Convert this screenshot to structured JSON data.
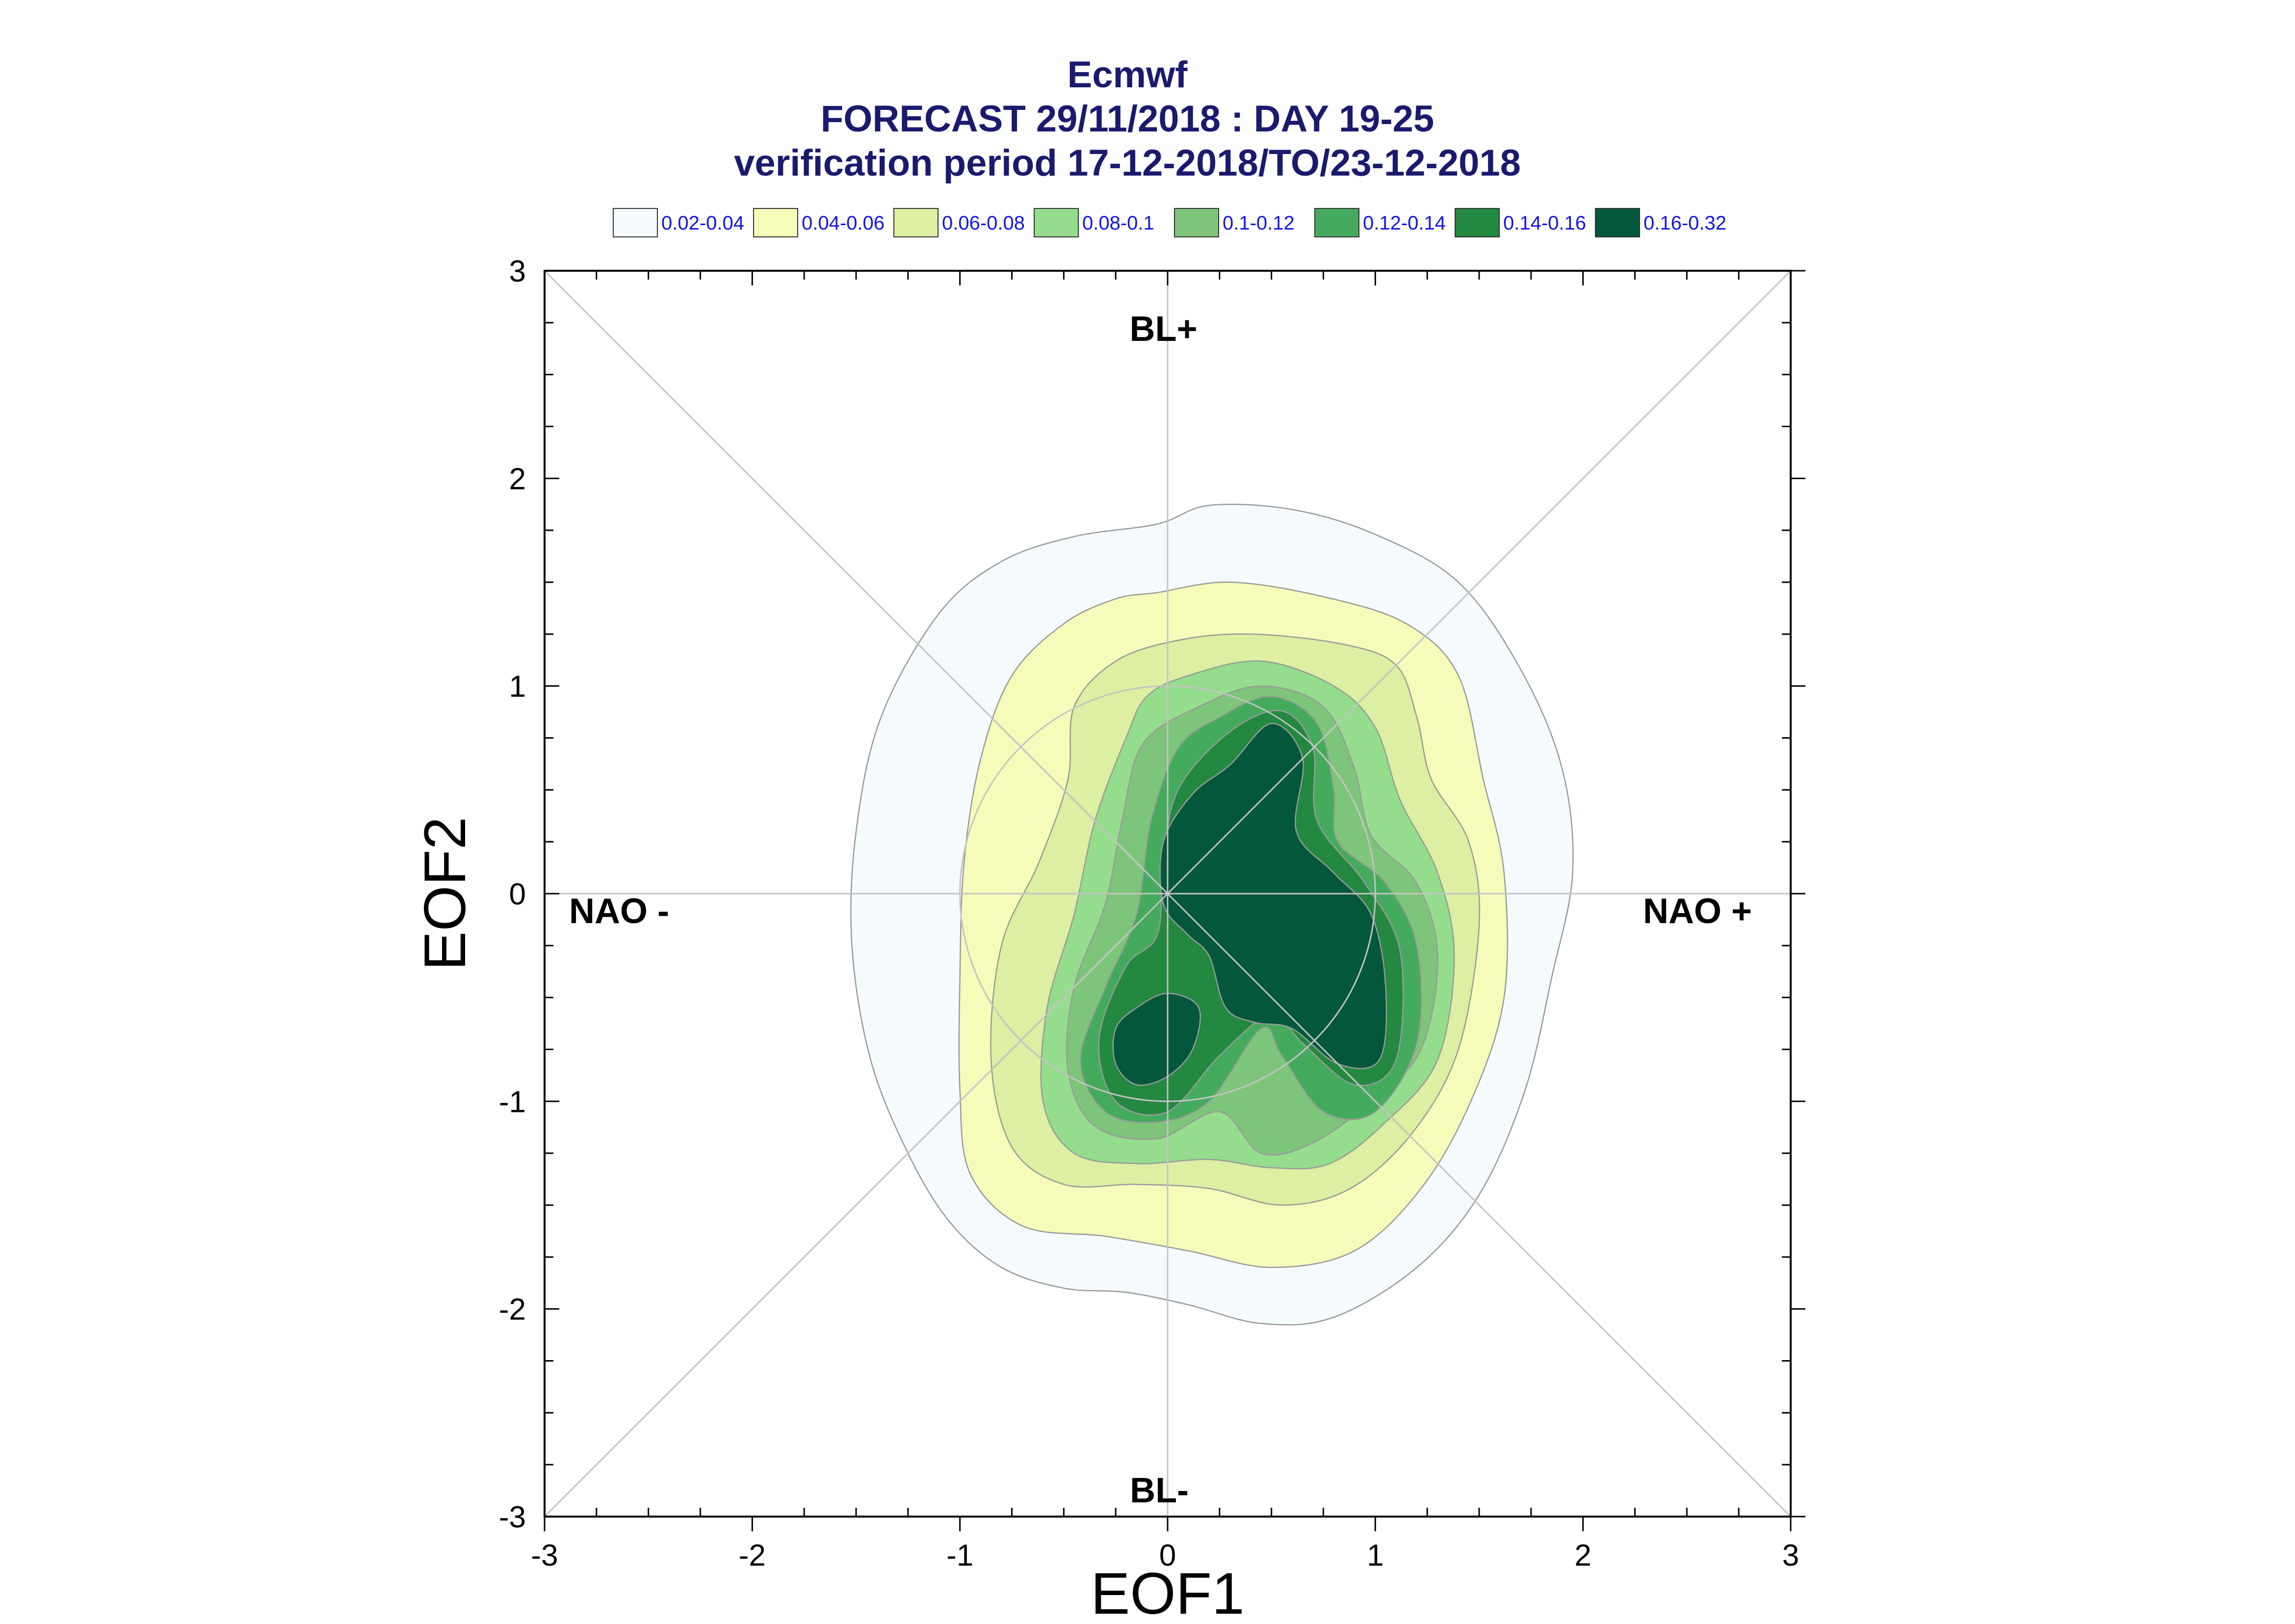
{
  "title": {
    "line1": "Ecmwf",
    "line2": "FORECAST 29/11/2018 : DAY 19-25",
    "line3": "verification period 17-12-2018/TO/23-12-2018"
  },
  "legend": [
    {
      "label": "0.02-0.04",
      "color": "#f5fafc"
    },
    {
      "label": "0.04-0.06",
      "color": "#f6fbb9"
    },
    {
      "label": "0.06-0.08",
      "color": "#dcefa2"
    },
    {
      "label": "0.08-0.1",
      "color": "#94dd8c"
    },
    {
      "label": "0.1-0.12",
      "color": "#7dc57a"
    },
    {
      "label": "0.12-0.14",
      "color": "#44ab5e"
    },
    {
      "label": "0.14-0.16",
      "color": "#238840"
    },
    {
      "label": "0.16-0.32",
      "color": "#03573a"
    }
  ],
  "regimes": {
    "top": "BL+",
    "bottom": "BL-",
    "left": "NAO -",
    "right": "NAO +"
  },
  "chart_data": {
    "type": "contour",
    "xlabel": "EOF1",
    "ylabel": "EOF2",
    "xlim": [
      -3,
      3
    ],
    "ylim": [
      -3,
      3
    ],
    "xticks": [
      "-3",
      "-2",
      "-1",
      "0",
      "1",
      "2",
      "3"
    ],
    "yticks": [
      "3",
      "2",
      "1",
      "0",
      "-1",
      "-2",
      "-3"
    ],
    "reference_circle_radius": 1,
    "levels": [
      {
        "range": "0.02-0.04",
        "color": "#f5fafc",
        "polygon": [
          [
            -0.05,
            1.78
          ],
          [
            0.2,
            1.87
          ],
          [
            0.6,
            1.85
          ],
          [
            1.0,
            1.73
          ],
          [
            1.4,
            1.5
          ],
          [
            1.7,
            1.08
          ],
          [
            1.9,
            0.6
          ],
          [
            1.95,
            0.1
          ],
          [
            1.85,
            -0.4
          ],
          [
            1.72,
            -0.95
          ],
          [
            1.5,
            -1.45
          ],
          [
            1.2,
            -1.8
          ],
          [
            0.8,
            -2.04
          ],
          [
            0.45,
            -2.07
          ],
          [
            0.1,
            -1.98
          ],
          [
            -0.2,
            -1.92
          ],
          [
            -0.5,
            -1.9
          ],
          [
            -0.8,
            -1.8
          ],
          [
            -1.05,
            -1.58
          ],
          [
            -1.25,
            -1.25
          ],
          [
            -1.43,
            -0.8
          ],
          [
            -1.52,
            -0.25
          ],
          [
            -1.5,
            0.3
          ],
          [
            -1.38,
            0.85
          ],
          [
            -1.1,
            1.35
          ],
          [
            -0.8,
            1.6
          ],
          [
            -0.45,
            1.72
          ]
        ]
      },
      {
        "range": "0.04-0.06",
        "color": "#f6fbb9",
        "polygon": [
          [
            -0.05,
            1.45
          ],
          [
            0.3,
            1.5
          ],
          [
            0.75,
            1.43
          ],
          [
            1.15,
            1.3
          ],
          [
            1.4,
            1.05
          ],
          [
            1.52,
            0.55
          ],
          [
            1.62,
            0.1
          ],
          [
            1.62,
            -0.5
          ],
          [
            1.46,
            -1.0
          ],
          [
            1.22,
            -1.42
          ],
          [
            0.9,
            -1.72
          ],
          [
            0.5,
            -1.8
          ],
          [
            0.1,
            -1.72
          ],
          [
            -0.3,
            -1.65
          ],
          [
            -0.7,
            -1.6
          ],
          [
            -0.95,
            -1.35
          ],
          [
            -1.0,
            -0.95
          ],
          [
            -1.0,
            -0.4
          ],
          [
            -0.98,
            0.15
          ],
          [
            -0.9,
            0.65
          ],
          [
            -0.75,
            1.05
          ],
          [
            -0.5,
            1.3
          ],
          [
            -0.25,
            1.42
          ]
        ]
      },
      {
        "range": "0.06-0.08",
        "color": "#dcefa2",
        "polygon": [
          [
            0.05,
            1.22
          ],
          [
            0.4,
            1.25
          ],
          [
            0.85,
            1.2
          ],
          [
            1.1,
            1.1
          ],
          [
            1.2,
            0.85
          ],
          [
            1.27,
            0.55
          ],
          [
            1.45,
            0.25
          ],
          [
            1.5,
            -0.15
          ],
          [
            1.4,
            -0.75
          ],
          [
            1.18,
            -1.15
          ],
          [
            0.88,
            -1.42
          ],
          [
            0.55,
            -1.5
          ],
          [
            0.2,
            -1.42
          ],
          [
            -0.15,
            -1.4
          ],
          [
            -0.5,
            -1.4
          ],
          [
            -0.75,
            -1.22
          ],
          [
            -0.85,
            -0.8
          ],
          [
            -0.8,
            -0.25
          ],
          [
            -0.62,
            0.15
          ],
          [
            -0.48,
            0.55
          ],
          [
            -0.45,
            0.9
          ],
          [
            -0.25,
            1.12
          ]
        ]
      },
      {
        "range": "0.08-0.1",
        "color": "#94dd8c",
        "polygon": [
          [
            0.1,
            1.05
          ],
          [
            0.45,
            1.12
          ],
          [
            0.8,
            1.0
          ],
          [
            1.0,
            0.8
          ],
          [
            1.12,
            0.45
          ],
          [
            1.3,
            0.1
          ],
          [
            1.38,
            -0.3
          ],
          [
            1.3,
            -0.8
          ],
          [
            1.05,
            -1.1
          ],
          [
            0.78,
            -1.3
          ],
          [
            0.5,
            -1.32
          ],
          [
            0.2,
            -1.28
          ],
          [
            -0.15,
            -1.3
          ],
          [
            -0.45,
            -1.25
          ],
          [
            -0.6,
            -1.0
          ],
          [
            -0.58,
            -0.55
          ],
          [
            -0.45,
            -0.1
          ],
          [
            -0.35,
            0.35
          ],
          [
            -0.2,
            0.75
          ],
          [
            -0.1,
            0.95
          ]
        ]
      },
      {
        "range": "0.1-0.12",
        "color": "#7dc57a",
        "polygon": [
          [
            0.15,
            0.9
          ],
          [
            0.45,
            1.0
          ],
          [
            0.75,
            0.9
          ],
          [
            0.9,
            0.6
          ],
          [
            0.98,
            0.28
          ],
          [
            1.2,
            0.05
          ],
          [
            1.3,
            -0.3
          ],
          [
            1.22,
            -0.75
          ],
          [
            0.98,
            -1.0
          ],
          [
            0.7,
            -1.2
          ],
          [
            0.45,
            -1.25
          ],
          [
            0.25,
            -1.05
          ],
          [
            -0.05,
            -1.18
          ],
          [
            -0.35,
            -1.12
          ],
          [
            -0.48,
            -0.85
          ],
          [
            -0.45,
            -0.45
          ],
          [
            -0.3,
            -0.05
          ],
          [
            -0.22,
            0.35
          ],
          [
            -0.12,
            0.72
          ]
        ]
      },
      {
        "range": "0.12-0.14",
        "color": "#44ab5e",
        "polygon": [
          [
            0.25,
            0.85
          ],
          [
            0.5,
            0.95
          ],
          [
            0.72,
            0.82
          ],
          [
            0.8,
            0.5
          ],
          [
            0.82,
            0.25
          ],
          [
            1.05,
            0.05
          ],
          [
            1.2,
            -0.25
          ],
          [
            1.2,
            -0.72
          ],
          [
            1.0,
            -1.05
          ],
          [
            0.75,
            -1.05
          ],
          [
            0.55,
            -0.78
          ],
          [
            0.45,
            -0.65
          ],
          [
            0.2,
            -1.0
          ],
          [
            -0.05,
            -1.1
          ],
          [
            -0.3,
            -1.05
          ],
          [
            -0.42,
            -0.8
          ],
          [
            -0.3,
            -0.45
          ],
          [
            -0.15,
            -0.1
          ],
          [
            -0.08,
            0.35
          ],
          [
            0.05,
            0.7
          ]
        ]
      },
      {
        "range": "0.14-0.16",
        "color": "#238840",
        "polygon": [
          [
            0.3,
            0.78
          ],
          [
            0.55,
            0.88
          ],
          [
            0.7,
            0.7
          ],
          [
            0.72,
            0.35
          ],
          [
            0.95,
            0.05
          ],
          [
            1.12,
            -0.28
          ],
          [
            1.1,
            -0.8
          ],
          [
            0.9,
            -0.92
          ],
          [
            0.65,
            -0.72
          ],
          [
            0.5,
            -0.58
          ],
          [
            0.25,
            -0.78
          ],
          [
            0.0,
            -1.05
          ],
          [
            -0.25,
            -1.0
          ],
          [
            -0.33,
            -0.7
          ],
          [
            -0.2,
            -0.35
          ],
          [
            -0.05,
            -0.2
          ],
          [
            -0.02,
            0.15
          ],
          [
            0.05,
            0.5
          ]
        ]
      },
      {
        "range": "0.16-0.32",
        "color": "#03573a",
        "polygon": [
          [
            0.3,
            0.62
          ],
          [
            0.5,
            0.82
          ],
          [
            0.65,
            0.65
          ],
          [
            0.62,
            0.3
          ],
          [
            0.8,
            0.1
          ],
          [
            0.98,
            -0.1
          ],
          [
            1.05,
            -0.45
          ],
          [
            1.02,
            -0.8
          ],
          [
            0.82,
            -0.82
          ],
          [
            0.6,
            -0.65
          ],
          [
            0.42,
            -0.62
          ],
          [
            0.28,
            -0.55
          ],
          [
            0.2,
            -0.3
          ],
          [
            0.1,
            -0.2
          ],
          [
            -0.02,
            -0.05
          ],
          [
            -0.02,
            0.25
          ],
          [
            0.12,
            0.48
          ]
        ]
      },
      {
        "range": "0.16-0.32",
        "color": "#03573a",
        "polygon": [
          [
            -0.15,
            -0.55
          ],
          [
            0.0,
            -0.48
          ],
          [
            0.15,
            -0.55
          ],
          [
            0.12,
            -0.75
          ],
          [
            0.0,
            -0.88
          ],
          [
            -0.15,
            -0.92
          ],
          [
            -0.25,
            -0.82
          ],
          [
            -0.25,
            -0.65
          ]
        ]
      }
    ]
  }
}
